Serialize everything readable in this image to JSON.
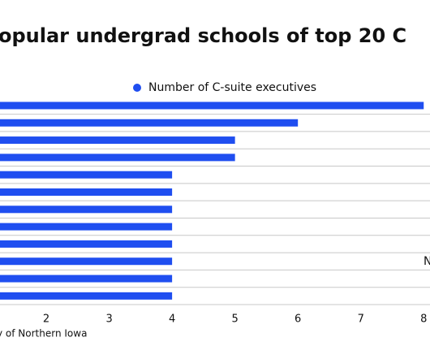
{
  "chart_data": {
    "type": "barh",
    "title": "opular undergrad schools of top 20 C",
    "legend": "Number of C-suite executives",
    "series": [
      {
        "name": "Number of C-suite executives",
        "color": "#1f4ef0",
        "values": [
          8,
          6,
          5,
          5,
          4,
          4,
          4,
          4,
          4,
          4,
          4,
          4
        ]
      }
    ],
    "categories": [
      null,
      null,
      null,
      null,
      null,
      null,
      null,
      null,
      null,
      null,
      null,
      null
    ],
    "xlim": [
      0,
      8.1
    ],
    "xticks": [
      2,
      3,
      4,
      5,
      6,
      7,
      8
    ],
    "annotations": [
      "N"
    ],
    "source": "y of Northern Iowa"
  }
}
